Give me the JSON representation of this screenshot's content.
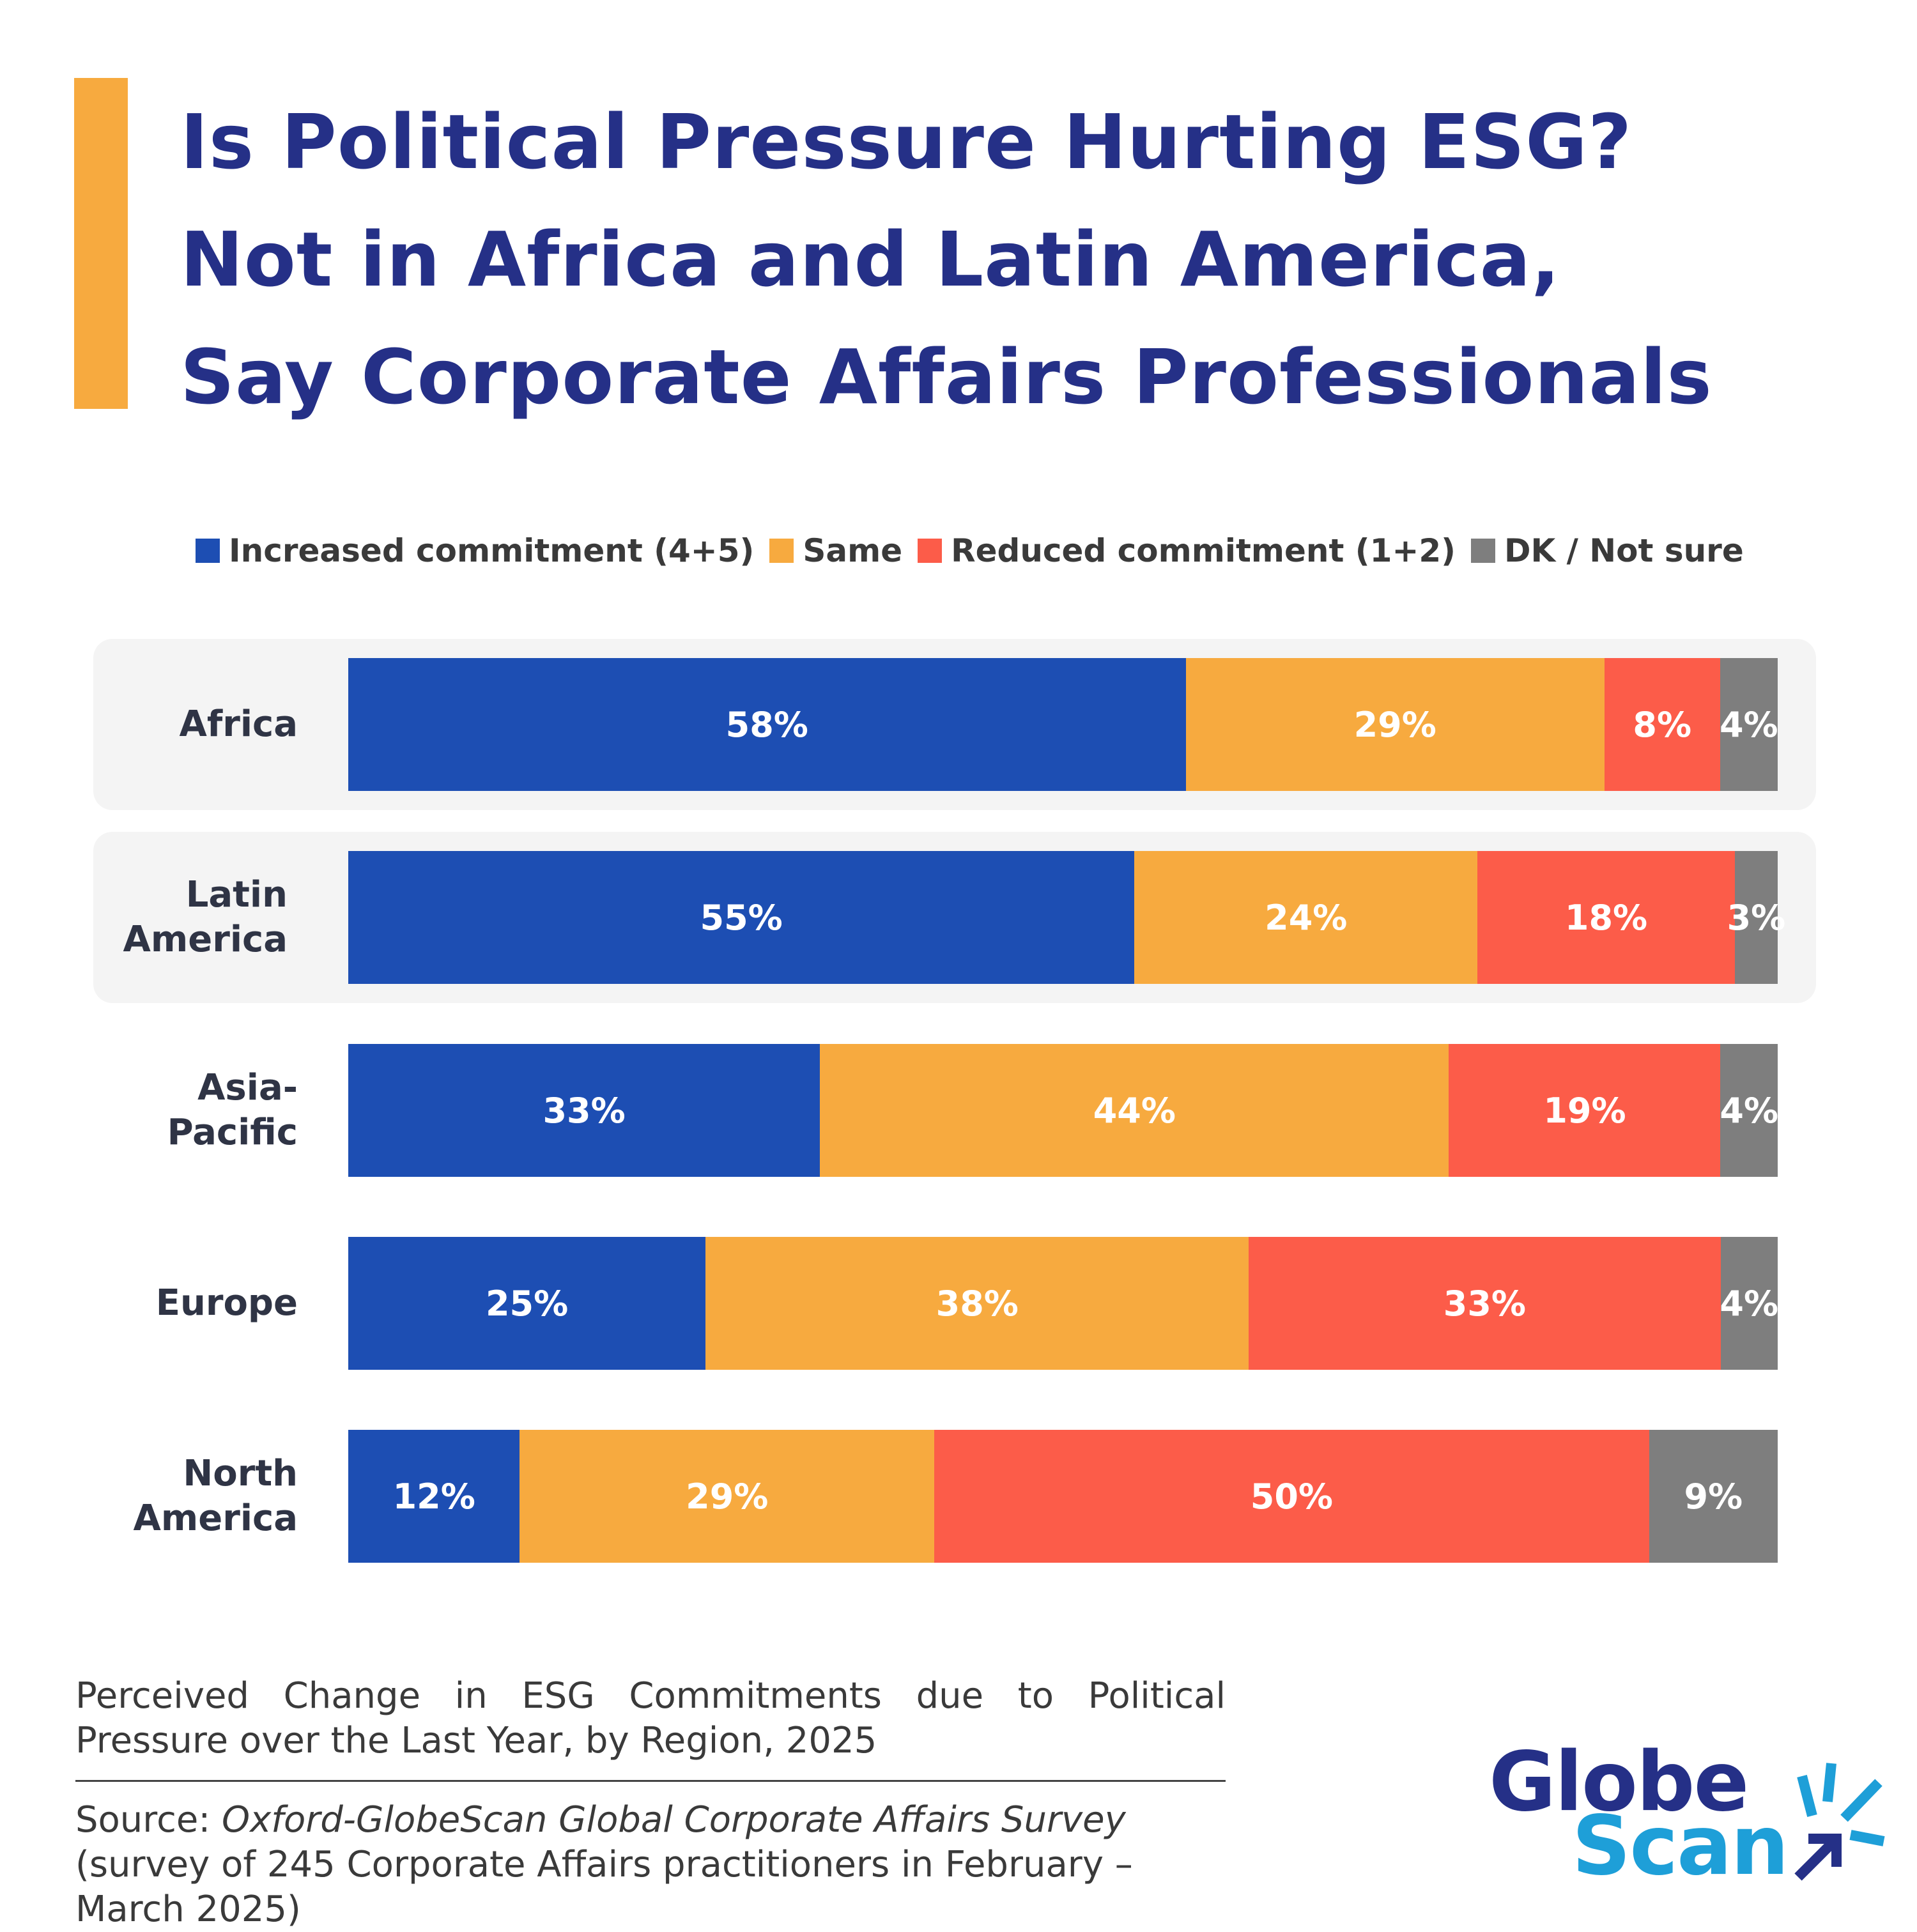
{
  "title": {
    "line1": "Is Political Pressure Hurting ESG?",
    "line2": "Not in Africa and Latin America,",
    "line3": "Say Corporate Affairs Professionals"
  },
  "colors": {
    "accent": "#F7AA3F",
    "title": "#253087",
    "increased": "#1D4EB3",
    "same": "#F7AA3F",
    "reduced": "#FC5C49",
    "dk": "#7E7E7E"
  },
  "chart_data": {
    "type": "bar",
    "orientation": "horizontal",
    "stacked": true,
    "categories": [
      "Africa",
      "Latin America",
      "Asia-Pacific",
      "Europe",
      "North America"
    ],
    "category_lines": [
      [
        "Africa"
      ],
      [
        "Latin",
        "America"
      ],
      [
        "Asia-",
        "Pacific"
      ],
      [
        "Europe"
      ],
      [
        "North",
        "America"
      ]
    ],
    "series": [
      {
        "name": "Increased commitment (4+5)",
        "color": "#1D4EB3",
        "values": [
          58,
          55,
          33,
          25,
          12
        ]
      },
      {
        "name": "Same",
        "color": "#F7AA3F",
        "values": [
          29,
          24,
          44,
          38,
          29
        ]
      },
      {
        "name": "Reduced commitment (1+2)",
        "color": "#FC5C49",
        "values": [
          8,
          18,
          19,
          33,
          50
        ]
      },
      {
        "name": "DK / Not sure",
        "color": "#7E7E7E",
        "values": [
          4,
          3,
          4,
          4,
          9
        ]
      }
    ],
    "value_suffix": "%",
    "legend_position": "top",
    "highlighted_categories": [
      "Africa",
      "Latin America"
    ]
  },
  "subtitle": "Perceived Change in ESG Commitments due to Political Pressure over the Last Year, by Region, 2025",
  "source": {
    "prefix": "Source: ",
    "name": "Oxford-GlobeScan Global Corporate Affairs Survey",
    "suffix": " (survey of 245 Corporate Affairs practitioners in February – March 2025)"
  },
  "logo": {
    "globe": "Globe",
    "scan": "Scan"
  }
}
